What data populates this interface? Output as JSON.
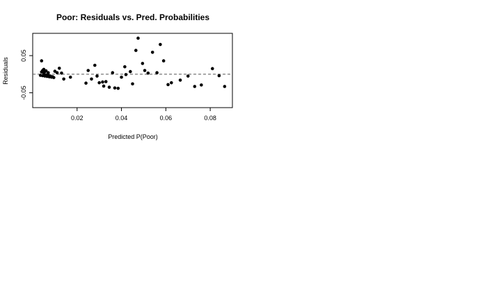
{
  "chart_data": {
    "type": "scatter",
    "title": "Poor: Residuals vs. Pred. Probabilities",
    "xlabel": "Predicted P(Poor)",
    "ylabel": "Residuals",
    "xlim": [
      0.0,
      0.09
    ],
    "ylim": [
      -0.09,
      0.11
    ],
    "xticks": [
      0.02,
      0.04,
      0.06,
      0.08
    ],
    "xtick_labels": [
      "0.02",
      "0.04",
      "0.06",
      "0.08"
    ],
    "yticks": [
      -0.05,
      0.05
    ],
    "ytick_labels": [
      "-0.05",
      "0.05"
    ],
    "reference_line": {
      "y": 0,
      "style": "dashed",
      "color": "#555555"
    },
    "grid": false,
    "legend": "none",
    "point_color": "#000000",
    "points": [
      {
        "x": 0.004,
        "y": 0.036
      },
      {
        "x": 0.0045,
        "y": 0.01
      },
      {
        "x": 0.005,
        "y": 0.013
      },
      {
        "x": 0.0055,
        "y": 0.007
      },
      {
        "x": 0.004,
        "y": 0.006
      },
      {
        "x": 0.005,
        "y": 0.002
      },
      {
        "x": 0.006,
        "y": 0.009
      },
      {
        "x": 0.007,
        "y": 0.004
      },
      {
        "x": 0.0035,
        "y": -0.003
      },
      {
        "x": 0.0045,
        "y": -0.004
      },
      {
        "x": 0.0055,
        "y": -0.005
      },
      {
        "x": 0.0065,
        "y": -0.006
      },
      {
        "x": 0.0075,
        "y": -0.007
      },
      {
        "x": 0.0085,
        "y": -0.008
      },
      {
        "x": 0.0095,
        "y": -0.009
      },
      {
        "x": 0.006,
        "y": -0.002
      },
      {
        "x": 0.007,
        "y": -0.003
      },
      {
        "x": 0.008,
        "y": -0.005
      },
      {
        "x": 0.009,
        "y": -0.007
      },
      {
        "x": 0.01,
        "y": 0.008
      },
      {
        "x": 0.011,
        "y": 0.004
      },
      {
        "x": 0.012,
        "y": 0.016
      },
      {
        "x": 0.013,
        "y": 0.003
      },
      {
        "x": 0.014,
        "y": -0.013
      },
      {
        "x": 0.017,
        "y": -0.008
      },
      {
        "x": 0.024,
        "y": -0.024
      },
      {
        "x": 0.025,
        "y": 0.01
      },
      {
        "x": 0.0265,
        "y": -0.013
      },
      {
        "x": 0.028,
        "y": 0.024
      },
      {
        "x": 0.029,
        "y": -0.005
      },
      {
        "x": 0.03,
        "y": -0.023
      },
      {
        "x": 0.0315,
        "y": -0.021
      },
      {
        "x": 0.032,
        "y": -0.032
      },
      {
        "x": 0.033,
        "y": -0.02
      },
      {
        "x": 0.0345,
        "y": -0.035
      },
      {
        "x": 0.036,
        "y": 0.004
      },
      {
        "x": 0.037,
        "y": -0.037
      },
      {
        "x": 0.0385,
        "y": -0.038
      },
      {
        "x": 0.04,
        "y": -0.008
      },
      {
        "x": 0.0415,
        "y": 0.02
      },
      {
        "x": 0.042,
        "y": -0.001
      },
      {
        "x": 0.044,
        "y": 0.007
      },
      {
        "x": 0.045,
        "y": -0.026
      },
      {
        "x": 0.0465,
        "y": 0.064
      },
      {
        "x": 0.0475,
        "y": 0.097
      },
      {
        "x": 0.0495,
        "y": 0.029
      },
      {
        "x": 0.0505,
        "y": 0.01
      },
      {
        "x": 0.052,
        "y": 0.003
      },
      {
        "x": 0.054,
        "y": 0.059
      },
      {
        "x": 0.056,
        "y": 0.004
      },
      {
        "x": 0.0575,
        "y": 0.08
      },
      {
        "x": 0.059,
        "y": 0.036
      },
      {
        "x": 0.061,
        "y": -0.028
      },
      {
        "x": 0.0625,
        "y": -0.023
      },
      {
        "x": 0.0665,
        "y": -0.016
      },
      {
        "x": 0.07,
        "y": -0.005
      },
      {
        "x": 0.073,
        "y": -0.033
      },
      {
        "x": 0.076,
        "y": -0.029
      },
      {
        "x": 0.081,
        "y": 0.015
      },
      {
        "x": 0.084,
        "y": -0.004
      },
      {
        "x": 0.0865,
        "y": -0.033
      }
    ]
  }
}
